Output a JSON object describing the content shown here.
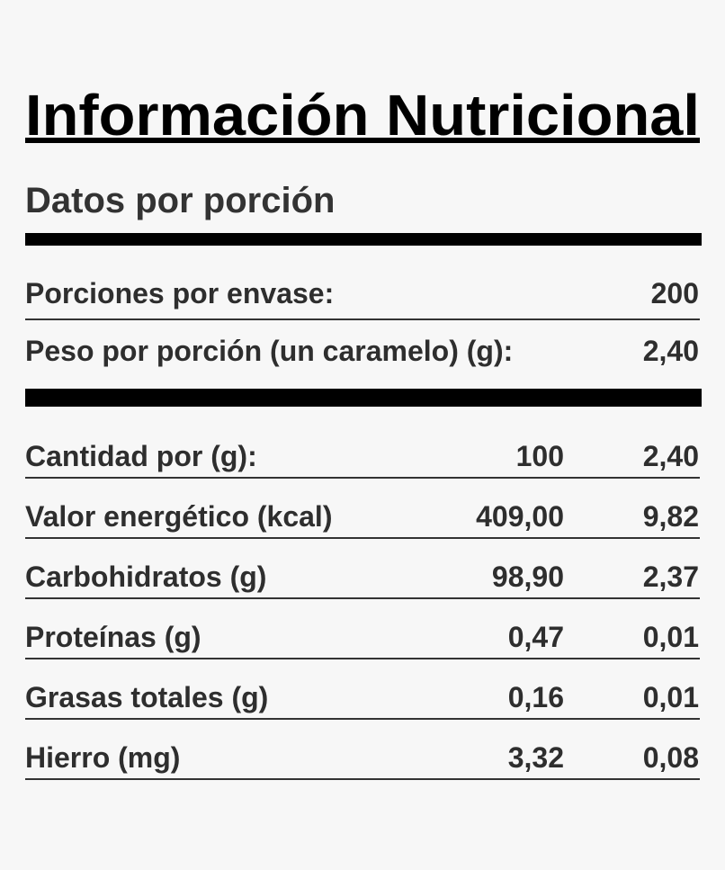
{
  "header": {
    "title": "Información Nutricional",
    "subtitle": "Datos por porción"
  },
  "serving": {
    "rows": [
      [
        "Porciones por envase:",
        "200"
      ],
      [
        "Peso por porción (un caramelo) (g):",
        "2,40"
      ]
    ]
  },
  "table": {
    "header": [
      "Cantidad por (g):",
      "100",
      "2,40"
    ],
    "rows": [
      [
        "Valor energético (kcal)",
        "409,00",
        "9,82"
      ],
      [
        "Carbohidratos (g)",
        "98,90",
        "2,37"
      ],
      [
        "Proteínas (g)",
        "0,47",
        "0,01"
      ],
      [
        "Grasas totales (g)",
        "0,16",
        "0,01"
      ],
      [
        "Hierro (mg)",
        "3,32",
        "0,08"
      ]
    ]
  }
}
